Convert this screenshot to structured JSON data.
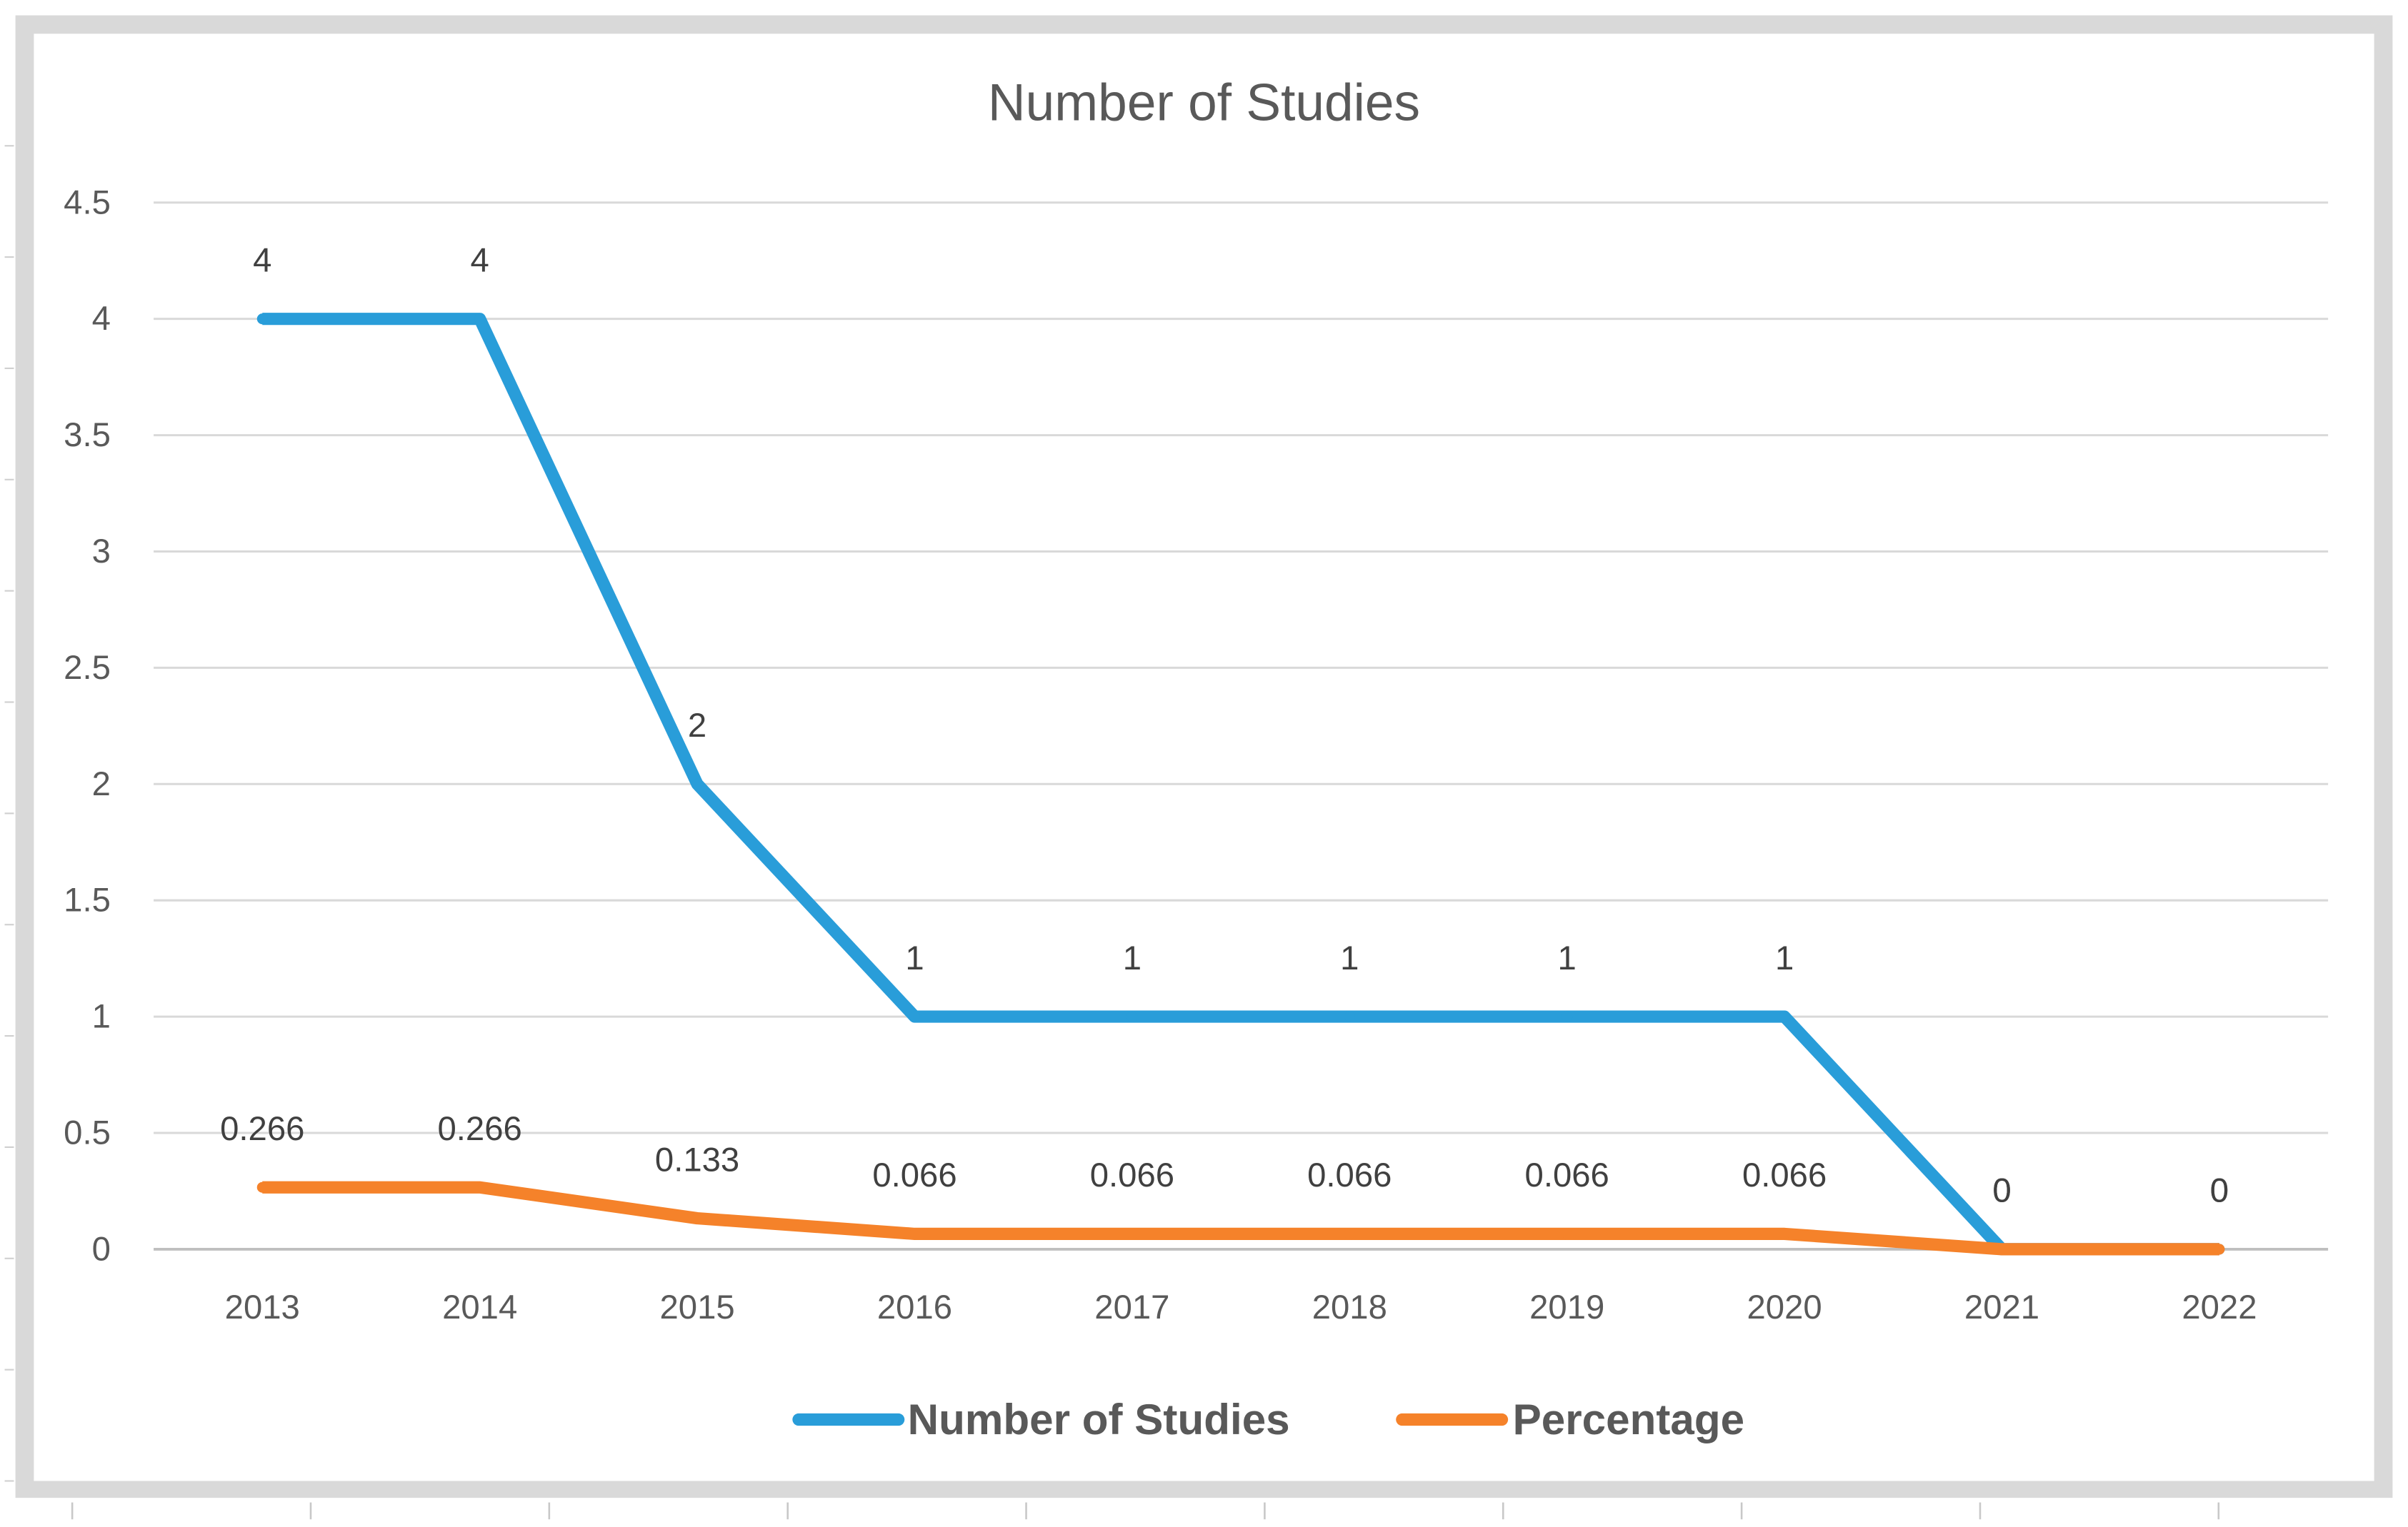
{
  "chart_data": {
    "type": "line",
    "title": "Number of Studies",
    "categories": [
      "2013",
      "2014",
      "2015",
      "2016",
      "2017",
      "2018",
      "2019",
      "2020",
      "2021",
      "2022"
    ],
    "series": [
      {
        "name": "Number of Studies",
        "color": "#299DD9",
        "values": [
          4,
          4,
          2,
          1,
          1,
          1,
          1,
          1,
          0,
          0
        ]
      },
      {
        "name": "Percentage",
        "color": "#F5822A",
        "values": [
          0.266,
          0.266,
          0.133,
          0.066,
          0.066,
          0.066,
          0.066,
          0.066,
          0,
          0
        ]
      }
    ],
    "ylim": [
      0,
      4.5
    ],
    "yticks": [
      0,
      0.5,
      1,
      1.5,
      2,
      2.5,
      3,
      3.5,
      4,
      4.5
    ],
    "grid": true,
    "legend": "bottom",
    "data_labels": true
  }
}
